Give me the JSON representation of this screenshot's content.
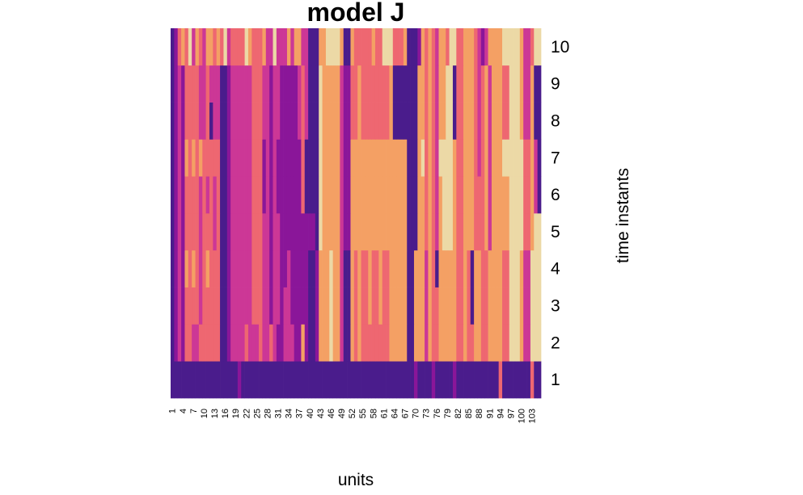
{
  "chart_data": {
    "type": "heatmap",
    "title": "model J",
    "xlabel": "units",
    "ylabel": "time instants",
    "n_units": 105,
    "x_tick_labels": [
      "1",
      "4",
      "7",
      "10",
      "13",
      "16",
      "19",
      "22",
      "25",
      "28",
      "31",
      "34",
      "37",
      "40",
      "43",
      "46",
      "49",
      "52",
      "55",
      "58",
      "61",
      "64",
      "67",
      "70",
      "73",
      "76",
      "79",
      "82",
      "85",
      "88",
      "91",
      "94",
      "97",
      "100",
      "103"
    ],
    "y_tick_labels": [
      "1",
      "2",
      "3",
      "4",
      "5",
      "6",
      "7",
      "8",
      "9",
      "10"
    ],
    "palette": [
      "#4a1c8c",
      "#8a1699",
      "#cc3796",
      "#ee6771",
      "#f4a064",
      "#ecd9a6"
    ],
    "color_scale": "plasma-like, low = dark purple, high = light beige",
    "legend": "none",
    "grid": false,
    "values": [
      [
        0,
        0,
        0,
        0,
        0,
        0,
        0,
        0,
        0,
        0,
        0,
        0,
        0,
        0,
        0,
        0,
        0,
        0,
        0,
        1,
        0,
        0,
        0,
        0,
        0,
        0,
        0,
        0,
        0,
        0,
        0,
        0,
        0,
        0,
        0,
        0,
        0,
        0,
        0,
        0,
        0,
        0,
        0,
        0,
        0,
        0,
        0,
        0,
        0,
        0,
        0,
        0,
        0,
        0,
        0,
        0,
        0,
        0,
        0,
        0,
        0,
        0,
        0,
        0,
        0,
        0,
        0,
        0,
        0,
        1,
        0,
        0,
        0,
        0,
        1,
        0,
        0,
        0,
        0,
        0,
        1,
        0,
        0,
        0,
        0,
        0,
        0,
        0,
        0,
        0,
        0,
        0,
        0,
        3,
        0,
        0,
        0,
        0,
        0,
        0,
        0,
        0,
        3,
        0,
        0
      ],
      [
        0,
        1,
        2,
        1,
        3,
        3,
        2,
        2,
        3,
        3,
        3,
        3,
        3,
        3,
        0,
        0,
        1,
        2,
        2,
        2,
        2,
        3,
        2,
        2,
        2,
        3,
        2,
        2,
        3,
        2,
        1,
        1,
        2,
        2,
        2,
        1,
        1,
        4,
        1,
        0,
        0,
        1,
        4,
        4,
        4,
        5,
        4,
        4,
        2,
        0,
        0,
        4,
        3,
        4,
        3,
        3,
        3,
        3,
        3,
        3,
        3,
        3,
        4,
        4,
        4,
        4,
        4,
        0,
        0,
        4,
        4,
        4,
        2,
        4,
        3,
        3,
        4,
        4,
        4,
        4,
        4,
        3,
        3,
        4,
        3,
        3,
        4,
        4,
        3,
        3,
        4,
        4,
        4,
        4,
        3,
        3,
        5,
        5,
        5,
        4,
        2,
        2,
        5,
        5,
        5
      ],
      [
        0,
        1,
        2,
        1,
        3,
        3,
        3,
        3,
        2,
        3,
        3,
        3,
        3,
        3,
        0,
        0,
        1,
        2,
        2,
        2,
        2,
        2,
        2,
        3,
        3,
        3,
        2,
        2,
        1,
        2,
        2,
        1,
        2,
        2,
        1,
        1,
        1,
        1,
        1,
        0,
        0,
        1,
        4,
        4,
        4,
        5,
        4,
        4,
        2,
        0,
        0,
        4,
        3,
        4,
        3,
        3,
        4,
        3,
        3,
        4,
        3,
        3,
        4,
        4,
        4,
        4,
        4,
        0,
        0,
        4,
        4,
        4,
        2,
        4,
        3,
        3,
        4,
        4,
        4,
        4,
        4,
        3,
        3,
        4,
        3,
        0,
        4,
        4,
        3,
        3,
        4,
        4,
        4,
        4,
        3,
        3,
        5,
        5,
        5,
        4,
        2,
        2,
        5,
        5,
        5
      ],
      [
        0,
        1,
        2,
        1,
        4,
        3,
        4,
        3,
        2,
        3,
        4,
        3,
        3,
        3,
        0,
        0,
        1,
        2,
        2,
        2,
        2,
        2,
        2,
        3,
        3,
        3,
        2,
        2,
        1,
        2,
        2,
        1,
        1,
        2,
        1,
        1,
        1,
        1,
        1,
        0,
        0,
        1,
        4,
        4,
        4,
        5,
        4,
        4,
        2,
        0,
        0,
        4,
        3,
        4,
        3,
        3,
        4,
        3,
        3,
        4,
        3,
        3,
        4,
        4,
        4,
        4,
        4,
        0,
        0,
        4,
        4,
        4,
        2,
        4,
        3,
        0,
        4,
        4,
        4,
        4,
        4,
        3,
        3,
        4,
        3,
        0,
        4,
        4,
        3,
        3,
        4,
        4,
        4,
        4,
        3,
        3,
        5,
        5,
        5,
        4,
        2,
        2,
        5,
        5,
        5
      ],
      [
        0,
        1,
        2,
        1,
        3,
        3,
        3,
        3,
        2,
        3,
        3,
        3,
        2,
        3,
        0,
        0,
        1,
        2,
        2,
        2,
        2,
        2,
        2,
        3,
        3,
        3,
        2,
        2,
        1,
        2,
        2,
        1,
        1,
        1,
        1,
        1,
        1,
        1,
        1,
        1,
        1,
        0,
        5,
        4,
        4,
        4,
        4,
        4,
        2,
        1,
        1,
        4,
        4,
        4,
        4,
        4,
        4,
        4,
        4,
        4,
        4,
        4,
        4,
        4,
        4,
        4,
        4,
        0,
        0,
        0,
        4,
        4,
        3,
        4,
        3,
        2,
        4,
        5,
        5,
        5,
        4,
        3,
        3,
        4,
        4,
        4,
        3,
        3,
        3,
        4,
        2,
        4,
        4,
        4,
        4,
        4,
        5,
        5,
        5,
        5,
        3,
        3,
        4,
        5,
        5
      ],
      [
        0,
        1,
        2,
        1,
        3,
        3,
        3,
        3,
        2,
        3,
        2,
        3,
        2,
        3,
        0,
        0,
        1,
        2,
        2,
        2,
        2,
        2,
        2,
        3,
        3,
        3,
        1,
        2,
        1,
        2,
        1,
        1,
        1,
        1,
        1,
        1,
        1,
        3,
        0,
        0,
        0,
        0,
        5,
        4,
        4,
        4,
        4,
        4,
        2,
        1,
        1,
        4,
        4,
        4,
        4,
        4,
        4,
        4,
        4,
        4,
        4,
        4,
        4,
        4,
        4,
        4,
        4,
        0,
        0,
        0,
        4,
        4,
        3,
        4,
        3,
        2,
        4,
        5,
        5,
        5,
        4,
        3,
        3,
        4,
        4,
        4,
        3,
        3,
        3,
        4,
        2,
        4,
        4,
        4,
        4,
        4,
        5,
        5,
        5,
        5,
        3,
        3,
        4,
        2,
        0
      ],
      [
        0,
        1,
        2,
        1,
        4,
        3,
        4,
        3,
        4,
        3,
        3,
        3,
        3,
        3,
        0,
        0,
        1,
        2,
        2,
        2,
        2,
        2,
        2,
        3,
        3,
        3,
        1,
        2,
        1,
        2,
        1,
        1,
        1,
        1,
        1,
        1,
        1,
        3,
        0,
        0,
        0,
        0,
        5,
        4,
        4,
        4,
        4,
        4,
        2,
        1,
        1,
        4,
        4,
        4,
        4,
        4,
        4,
        4,
        4,
        4,
        4,
        4,
        4,
        4,
        4,
        4,
        4,
        0,
        0,
        0,
        4,
        5,
        3,
        4,
        3,
        2,
        5,
        5,
        5,
        5,
        4,
        3,
        3,
        4,
        4,
        4,
        3,
        2,
        3,
        4,
        2,
        4,
        4,
        4,
        5,
        5,
        5,
        5,
        5,
        5,
        3,
        3,
        4,
        2,
        0
      ],
      [
        0,
        1,
        2,
        1,
        3,
        3,
        3,
        3,
        2,
        2,
        3,
        0,
        2,
        2,
        0,
        0,
        1,
        2,
        2,
        2,
        2,
        2,
        2,
        3,
        3,
        3,
        2,
        2,
        1,
        2,
        2,
        1,
        1,
        1,
        1,
        1,
        2,
        3,
        2,
        0,
        0,
        0,
        5,
        4,
        4,
        4,
        4,
        4,
        2,
        1,
        1,
        3,
        3,
        4,
        3,
        3,
        3,
        3,
        3,
        3,
        3,
        3,
        4,
        0,
        0,
        0,
        0,
        0,
        0,
        0,
        4,
        4,
        3,
        4,
        3,
        2,
        4,
        4,
        5,
        5,
        0,
        3,
        3,
        4,
        4,
        4,
        3,
        2,
        3,
        4,
        2,
        4,
        4,
        4,
        3,
        3,
        5,
        5,
        5,
        4,
        2,
        2,
        4,
        0,
        0
      ],
      [
        0,
        1,
        2,
        1,
        3,
        3,
        3,
        3,
        2,
        2,
        3,
        2,
        2,
        2,
        0,
        0,
        1,
        2,
        2,
        2,
        2,
        2,
        2,
        3,
        3,
        3,
        2,
        2,
        1,
        2,
        2,
        1,
        1,
        1,
        1,
        1,
        2,
        3,
        2,
        0,
        0,
        0,
        5,
        4,
        4,
        4,
        4,
        4,
        2,
        1,
        1,
        3,
        3,
        4,
        3,
        3,
        3,
        3,
        3,
        3,
        3,
        3,
        4,
        0,
        0,
        0,
        0,
        0,
        0,
        0,
        4,
        4,
        3,
        4,
        3,
        2,
        4,
        4,
        5,
        5,
        0,
        3,
        3,
        4,
        4,
        4,
        3,
        2,
        3,
        4,
        2,
        4,
        4,
        4,
        3,
        3,
        5,
        5,
        5,
        4,
        2,
        2,
        4,
        0,
        0
      ],
      [
        0,
        1,
        3,
        4,
        3,
        5,
        2,
        4,
        3,
        2,
        4,
        4,
        3,
        4,
        3,
        5,
        2,
        3,
        3,
        3,
        3,
        5,
        4,
        3,
        3,
        3,
        4,
        2,
        2,
        5,
        2,
        2,
        2,
        4,
        2,
        4,
        4,
        2,
        2,
        0,
        0,
        0,
        4,
        4,
        5,
        5,
        5,
        5,
        4,
        0,
        0,
        4,
        3,
        3,
        3,
        3,
        3,
        4,
        3,
        3,
        5,
        5,
        5,
        3,
        3,
        3,
        4,
        0,
        0,
        0,
        1,
        4,
        3,
        4,
        3,
        2,
        4,
        4,
        3,
        5,
        5,
        3,
        3,
        4,
        4,
        4,
        3,
        2,
        1,
        2,
        4,
        4,
        4,
        4,
        5,
        5,
        5,
        5,
        5,
        4,
        2,
        2,
        3,
        5,
        5
      ]
    ]
  }
}
